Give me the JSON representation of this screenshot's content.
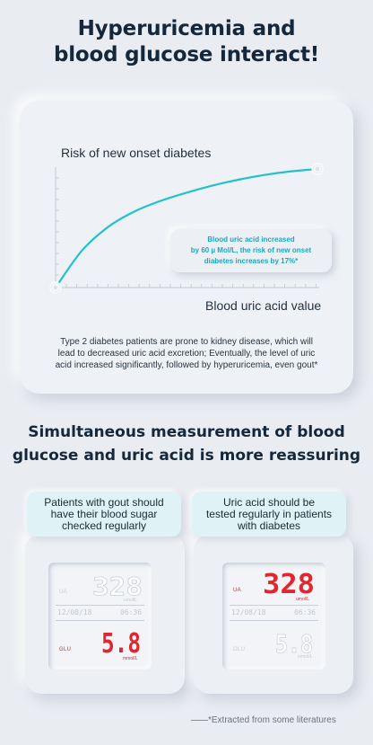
{
  "header": {
    "line1": "Hyperuricemia and",
    "line2": "blood glucose interact!"
  },
  "chart_data": {
    "type": "line",
    "title": "Risk of new onset diabetes",
    "xlabel": "Blood uric acid value",
    "ylabel": "",
    "x": [
      0,
      1,
      2,
      3,
      4,
      5,
      6,
      7,
      8,
      9,
      10
    ],
    "series": [
      {
        "values": [
          0,
          31,
          51,
          64,
          73,
          80,
          86,
          91,
          95,
          98,
          100
        ]
      }
    ],
    "ylim": [
      0,
      100
    ],
    "grid": false,
    "color": "#22c1cc",
    "annotation": "Blood uric acid increased by 60 µ Mol/L, the risk of new onset diabetes increases by 17%*"
  },
  "chart_text": {
    "callout_lines": [
      "Blood uric acid increased",
      "by 60 µ Mol/L, the risk of new onset",
      "diabetes increases by 17%*"
    ],
    "note_lines": [
      "Type 2 diabetes patients are prone to kidney disease, which will",
      "lead to decreased uric acid excretion; Eventually, the level of uric",
      "acid increased significantly, followed by hyperuricemia, even gout*"
    ]
  },
  "section2": {
    "line1": "Simultaneous measurement of blood",
    "line2": "glucose and uric acid is more reassuring"
  },
  "devices": [
    {
      "caption_lines": [
        "Patients with gout should",
        "have their blood sugar",
        "checked regularly"
      ],
      "ua_label": "UA",
      "ua_value": "328",
      "ua_unit": "umol/L",
      "date": "12/08/18",
      "time": "06:36",
      "glu_label": "GLU",
      "glu_value": "5.8",
      "glu_unit": "mmol/L",
      "active": "glu"
    },
    {
      "caption_lines": [
        "Uric acid should be",
        "tested regularly in patients",
        "with diabetes"
      ],
      "ua_label": "UA",
      "ua_value": "328",
      "ua_unit": "umol/L",
      "date": "12/08/18",
      "time": "06:36",
      "glu_label": "GLU",
      "glu_value": "5.8",
      "glu_unit": "mmol/L",
      "active": "ua"
    }
  ],
  "colors": {
    "active_digit": "#e0262e",
    "inactive_digit": "#ffffff",
    "accent": "#22c1cc"
  },
  "footer": {
    "note": "*Extracted from some literatures"
  }
}
